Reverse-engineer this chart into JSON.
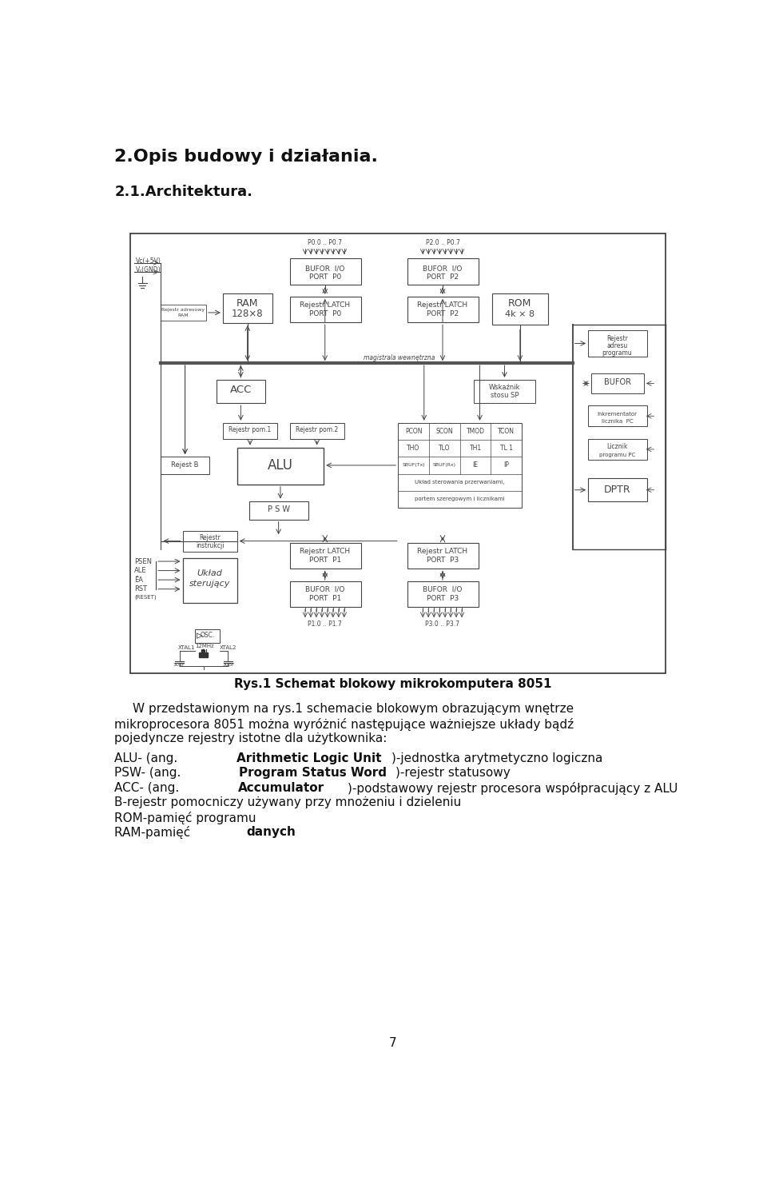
{
  "title1": "2.Opis budowy i działania.",
  "title2": "2.1.Architektura.",
  "fig_caption": "Rys.1 Schemat blokowy mikrokomputera 8051",
  "page_number": "7",
  "bg_color": "#ffffff",
  "text_color": "#111111",
  "dc": "#444444",
  "para_line1": "W przedstawionym na rys.1 schemacie blokowym obrazującym wnętrze",
  "para_line2": "mikroprocesora 8051 można wyróżnić następujące ważniejsze układy bądź",
  "para_line3": "pojedyncze rejestry istotne dla użytkownika:",
  "item1_pre": "ALU- (ang. ",
  "item1_bold": "Arithmetic Logic Unit",
  "item1_post": ")-jednostka arytmetyczno logiczna",
  "item2_pre": "PSW- (ang. ",
  "item2_bold": "Program Status Word",
  "item2_post": ")-rejestr statusowy",
  "item3_pre": "ACC- (ang. ",
  "item3_bold": "Accumulator",
  "item3_post": ")-podstawowy rejestr procesora współpracujący z ALU",
  "item4_pre": "B-rejestr pomocniczy używany przy mnożeniu i dzieleniu",
  "item4_bold": "",
  "item4_post": "",
  "item5_pre": "ROM-pamięć programu",
  "item5_bold": "",
  "item5_post": "",
  "item6_pre": "RAM-pamięć ",
  "item6_bold": "danych",
  "item6_post": ""
}
